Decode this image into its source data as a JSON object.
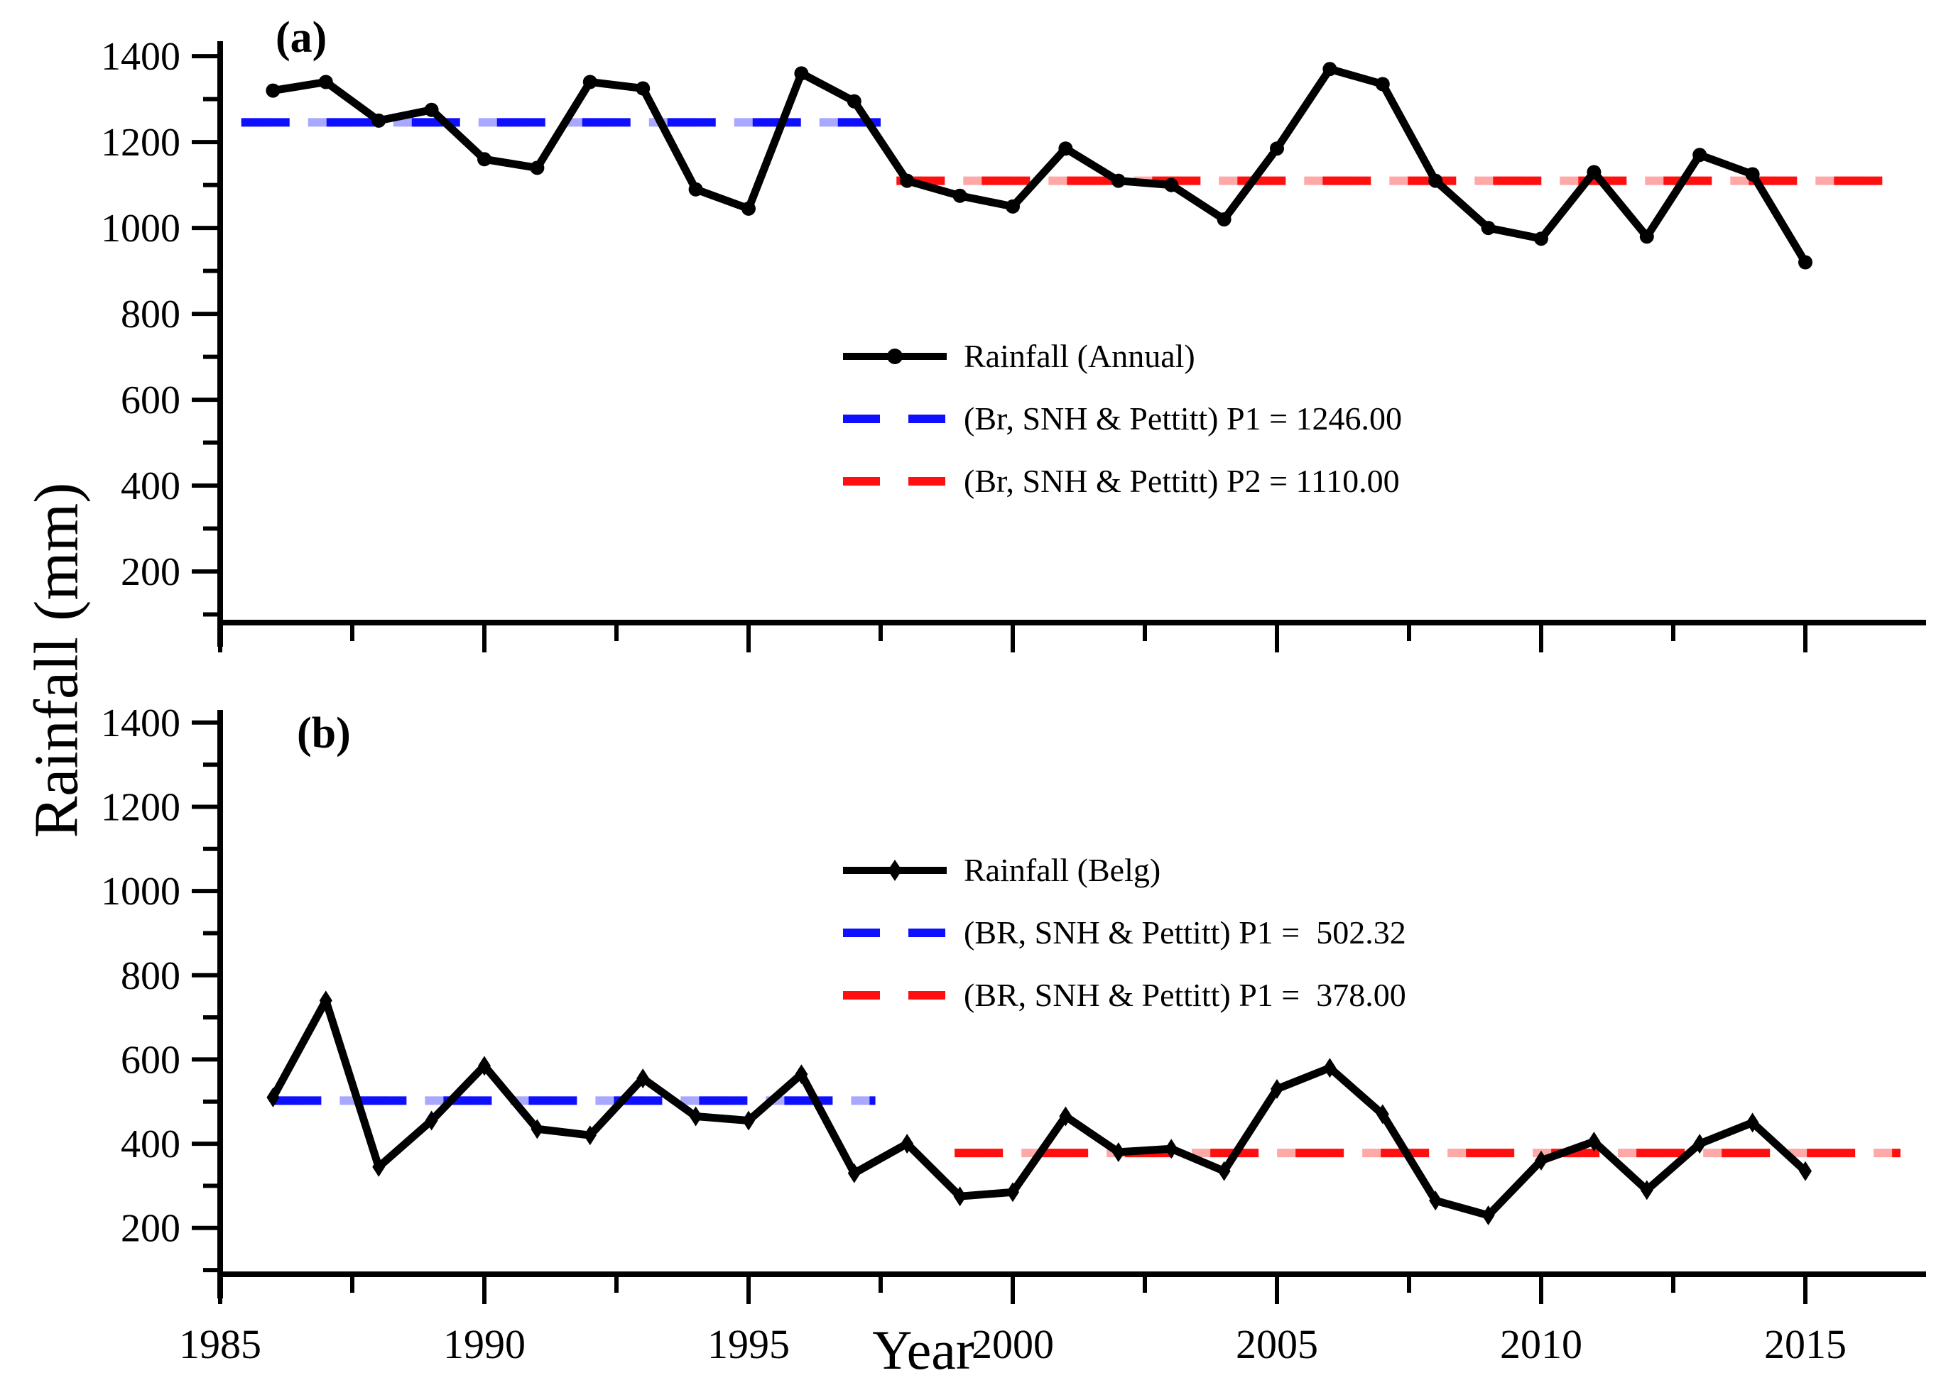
{
  "figure": {
    "ylabel": "Rainfall (mm)",
    "xlabel": "Year",
    "colors": {
      "black": "#000000",
      "blue": "#0f0fff",
      "red": "#ff0f0f",
      "blue_halo": "#a8a8ff",
      "red_halo": "#ffa8a8"
    }
  },
  "chart_data": [
    {
      "type": "line",
      "panel_label": "(a)",
      "x": [
        1986,
        1987,
        1988,
        1989,
        1990,
        1991,
        1992,
        1993,
        1994,
        1995,
        1996,
        1997,
        1998,
        1999,
        2000,
        2001,
        2002,
        2003,
        2004,
        2005,
        2006,
        2007,
        2008,
        2009,
        2010,
        2011,
        2012,
        2013,
        2014,
        2015
      ],
      "series": [
        {
          "name": "Rainfall (Annual)",
          "marker": "circle",
          "values": [
            1320,
            1340,
            1250,
            1275,
            1160,
            1140,
            1340,
            1325,
            1090,
            1045,
            1360,
            1295,
            1110,
            1075,
            1050,
            1185,
            1110,
            1100,
            1020,
            1185,
            1370,
            1335,
            1110,
            1000,
            975,
            1130,
            980,
            1170,
            1125,
            920
          ]
        }
      ],
      "ref_lines": [
        {
          "label": "(Br, SNH & Pettitt) P1 = 1246.00",
          "value": 1246.0,
          "color_key": "blue",
          "halo_key": "blue_halo",
          "x_start": 1985.4,
          "x_end": 1997.5
        },
        {
          "label": "(Br, SNH & Pettitt) P2 = 1110.00",
          "value": 1110.0,
          "color_key": "red",
          "halo_key": "red_halo",
          "x_start": 1997.8,
          "x_end": 2016.8
        }
      ],
      "ylim": [
        81,
        1435
      ],
      "yticks": [
        200,
        400,
        600,
        800,
        1000,
        1200,
        1400
      ],
      "xticks": [
        1985,
        1990,
        1995,
        2000,
        2005,
        2010,
        2015
      ],
      "x_tick_labels_visible": false,
      "grid": false,
      "legend_position": "center-inside"
    },
    {
      "type": "line",
      "panel_label": "(b)",
      "x": [
        1986,
        1987,
        1988,
        1989,
        1990,
        1991,
        1992,
        1993,
        1994,
        1995,
        1996,
        1997,
        1998,
        1999,
        2000,
        2001,
        2002,
        2003,
        2004,
        2005,
        2006,
        2007,
        2008,
        2009,
        2010,
        2011,
        2012,
        2013,
        2014,
        2015
      ],
      "series": [
        {
          "name": "Rainfall (Belg)",
          "marker": "diamond",
          "values": [
            510,
            740,
            345,
            455,
            585,
            435,
            420,
            555,
            465,
            455,
            565,
            330,
            400,
            275,
            285,
            465,
            380,
            388,
            335,
            530,
            580,
            470,
            265,
            230,
            360,
            405,
            290,
            400,
            450,
            335
          ]
        }
      ],
      "ref_lines": [
        {
          "label": "(BR, SNH & Pettitt) P1 =  502.32",
          "value": 502.32,
          "color_key": "blue",
          "halo_key": "blue_halo",
          "x_start": 1986.0,
          "x_end": 1997.4
        },
        {
          "label": "(BR, SNH & Pettitt) P1 =  378.00",
          "value": 378.0,
          "color_key": "red",
          "halo_key": "red_halo",
          "x_start": 1998.9,
          "x_end": 2016.8
        }
      ],
      "ylim": [
        90,
        1430
      ],
      "yticks": [
        200,
        400,
        600,
        800,
        1000,
        1200,
        1400
      ],
      "xticks": [
        1985,
        1990,
        1995,
        2000,
        2005,
        2010,
        2015
      ],
      "x_tick_labels_visible": true,
      "grid": false,
      "legend_position": "center-inside"
    }
  ]
}
